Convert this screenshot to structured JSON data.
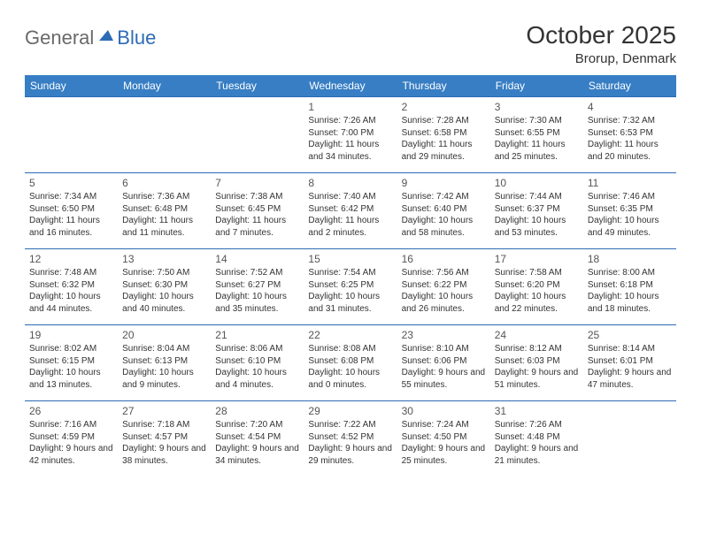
{
  "logo": {
    "general": "General",
    "blue": "Blue"
  },
  "title": "October 2025",
  "location": "Brorup, Denmark",
  "header_bg": "#377ec4",
  "border_color": "#2d6bb5",
  "weekdays": [
    "Sunday",
    "Monday",
    "Tuesday",
    "Wednesday",
    "Thursday",
    "Friday",
    "Saturday"
  ],
  "weeks": [
    [
      null,
      null,
      null,
      {
        "n": "1",
        "sr": "7:26 AM",
        "ss": "7:00 PM",
        "dl": "11 hours and 34 minutes."
      },
      {
        "n": "2",
        "sr": "7:28 AM",
        "ss": "6:58 PM",
        "dl": "11 hours and 29 minutes."
      },
      {
        "n": "3",
        "sr": "7:30 AM",
        "ss": "6:55 PM",
        "dl": "11 hours and 25 minutes."
      },
      {
        "n": "4",
        "sr": "7:32 AM",
        "ss": "6:53 PM",
        "dl": "11 hours and 20 minutes."
      }
    ],
    [
      {
        "n": "5",
        "sr": "7:34 AM",
        "ss": "6:50 PM",
        "dl": "11 hours and 16 minutes."
      },
      {
        "n": "6",
        "sr": "7:36 AM",
        "ss": "6:48 PM",
        "dl": "11 hours and 11 minutes."
      },
      {
        "n": "7",
        "sr": "7:38 AM",
        "ss": "6:45 PM",
        "dl": "11 hours and 7 minutes."
      },
      {
        "n": "8",
        "sr": "7:40 AM",
        "ss": "6:42 PM",
        "dl": "11 hours and 2 minutes."
      },
      {
        "n": "9",
        "sr": "7:42 AM",
        "ss": "6:40 PM",
        "dl": "10 hours and 58 minutes."
      },
      {
        "n": "10",
        "sr": "7:44 AM",
        "ss": "6:37 PM",
        "dl": "10 hours and 53 minutes."
      },
      {
        "n": "11",
        "sr": "7:46 AM",
        "ss": "6:35 PM",
        "dl": "10 hours and 49 minutes."
      }
    ],
    [
      {
        "n": "12",
        "sr": "7:48 AM",
        "ss": "6:32 PM",
        "dl": "10 hours and 44 minutes."
      },
      {
        "n": "13",
        "sr": "7:50 AM",
        "ss": "6:30 PM",
        "dl": "10 hours and 40 minutes."
      },
      {
        "n": "14",
        "sr": "7:52 AM",
        "ss": "6:27 PM",
        "dl": "10 hours and 35 minutes."
      },
      {
        "n": "15",
        "sr": "7:54 AM",
        "ss": "6:25 PM",
        "dl": "10 hours and 31 minutes."
      },
      {
        "n": "16",
        "sr": "7:56 AM",
        "ss": "6:22 PM",
        "dl": "10 hours and 26 minutes."
      },
      {
        "n": "17",
        "sr": "7:58 AM",
        "ss": "6:20 PM",
        "dl": "10 hours and 22 minutes."
      },
      {
        "n": "18",
        "sr": "8:00 AM",
        "ss": "6:18 PM",
        "dl": "10 hours and 18 minutes."
      }
    ],
    [
      {
        "n": "19",
        "sr": "8:02 AM",
        "ss": "6:15 PM",
        "dl": "10 hours and 13 minutes."
      },
      {
        "n": "20",
        "sr": "8:04 AM",
        "ss": "6:13 PM",
        "dl": "10 hours and 9 minutes."
      },
      {
        "n": "21",
        "sr": "8:06 AM",
        "ss": "6:10 PM",
        "dl": "10 hours and 4 minutes."
      },
      {
        "n": "22",
        "sr": "8:08 AM",
        "ss": "6:08 PM",
        "dl": "10 hours and 0 minutes."
      },
      {
        "n": "23",
        "sr": "8:10 AM",
        "ss": "6:06 PM",
        "dl": "9 hours and 55 minutes."
      },
      {
        "n": "24",
        "sr": "8:12 AM",
        "ss": "6:03 PM",
        "dl": "9 hours and 51 minutes."
      },
      {
        "n": "25",
        "sr": "8:14 AM",
        "ss": "6:01 PM",
        "dl": "9 hours and 47 minutes."
      }
    ],
    [
      {
        "n": "26",
        "sr": "7:16 AM",
        "ss": "4:59 PM",
        "dl": "9 hours and 42 minutes."
      },
      {
        "n": "27",
        "sr": "7:18 AM",
        "ss": "4:57 PM",
        "dl": "9 hours and 38 minutes."
      },
      {
        "n": "28",
        "sr": "7:20 AM",
        "ss": "4:54 PM",
        "dl": "9 hours and 34 minutes."
      },
      {
        "n": "29",
        "sr": "7:22 AM",
        "ss": "4:52 PM",
        "dl": "9 hours and 29 minutes."
      },
      {
        "n": "30",
        "sr": "7:24 AM",
        "ss": "4:50 PM",
        "dl": "9 hours and 25 minutes."
      },
      {
        "n": "31",
        "sr": "7:26 AM",
        "ss": "4:48 PM",
        "dl": "9 hours and 21 minutes."
      },
      null
    ]
  ]
}
